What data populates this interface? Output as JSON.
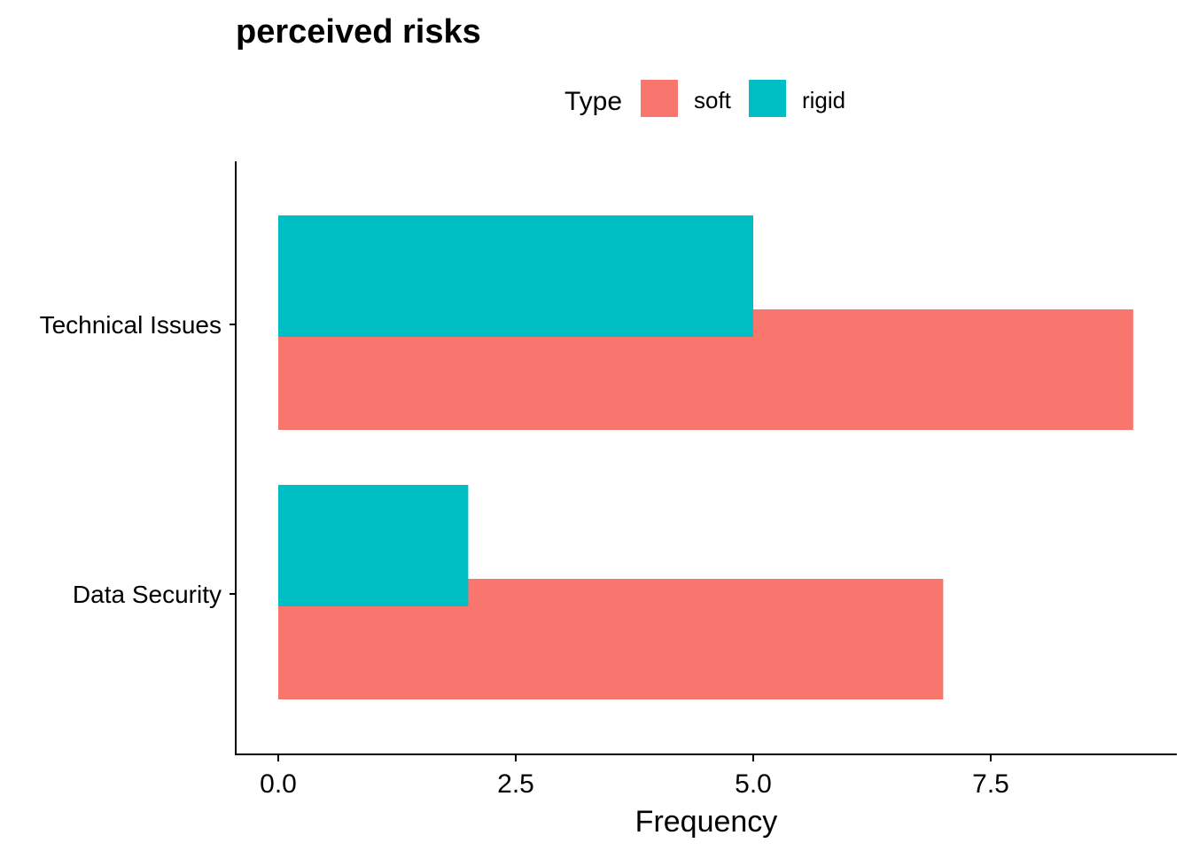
{
  "chart_data": {
    "type": "bar",
    "orientation": "horizontal",
    "title": "perceived risks",
    "xlabel": "Frequency",
    "ylabel": "",
    "xlim": [
      0,
      9
    ],
    "xticks": [
      "0.0",
      "2.5",
      "5.0",
      "7.5"
    ],
    "categories": [
      "Data Security",
      "Technical Issues"
    ],
    "legend": {
      "title": "Type",
      "placement": "top"
    },
    "series": [
      {
        "name": "soft",
        "color": "#F8766D",
        "values": [
          7,
          9
        ]
      },
      {
        "name": "rigid",
        "color": "#00BFC4",
        "values": [
          2,
          5
        ]
      }
    ],
    "grid": false
  }
}
